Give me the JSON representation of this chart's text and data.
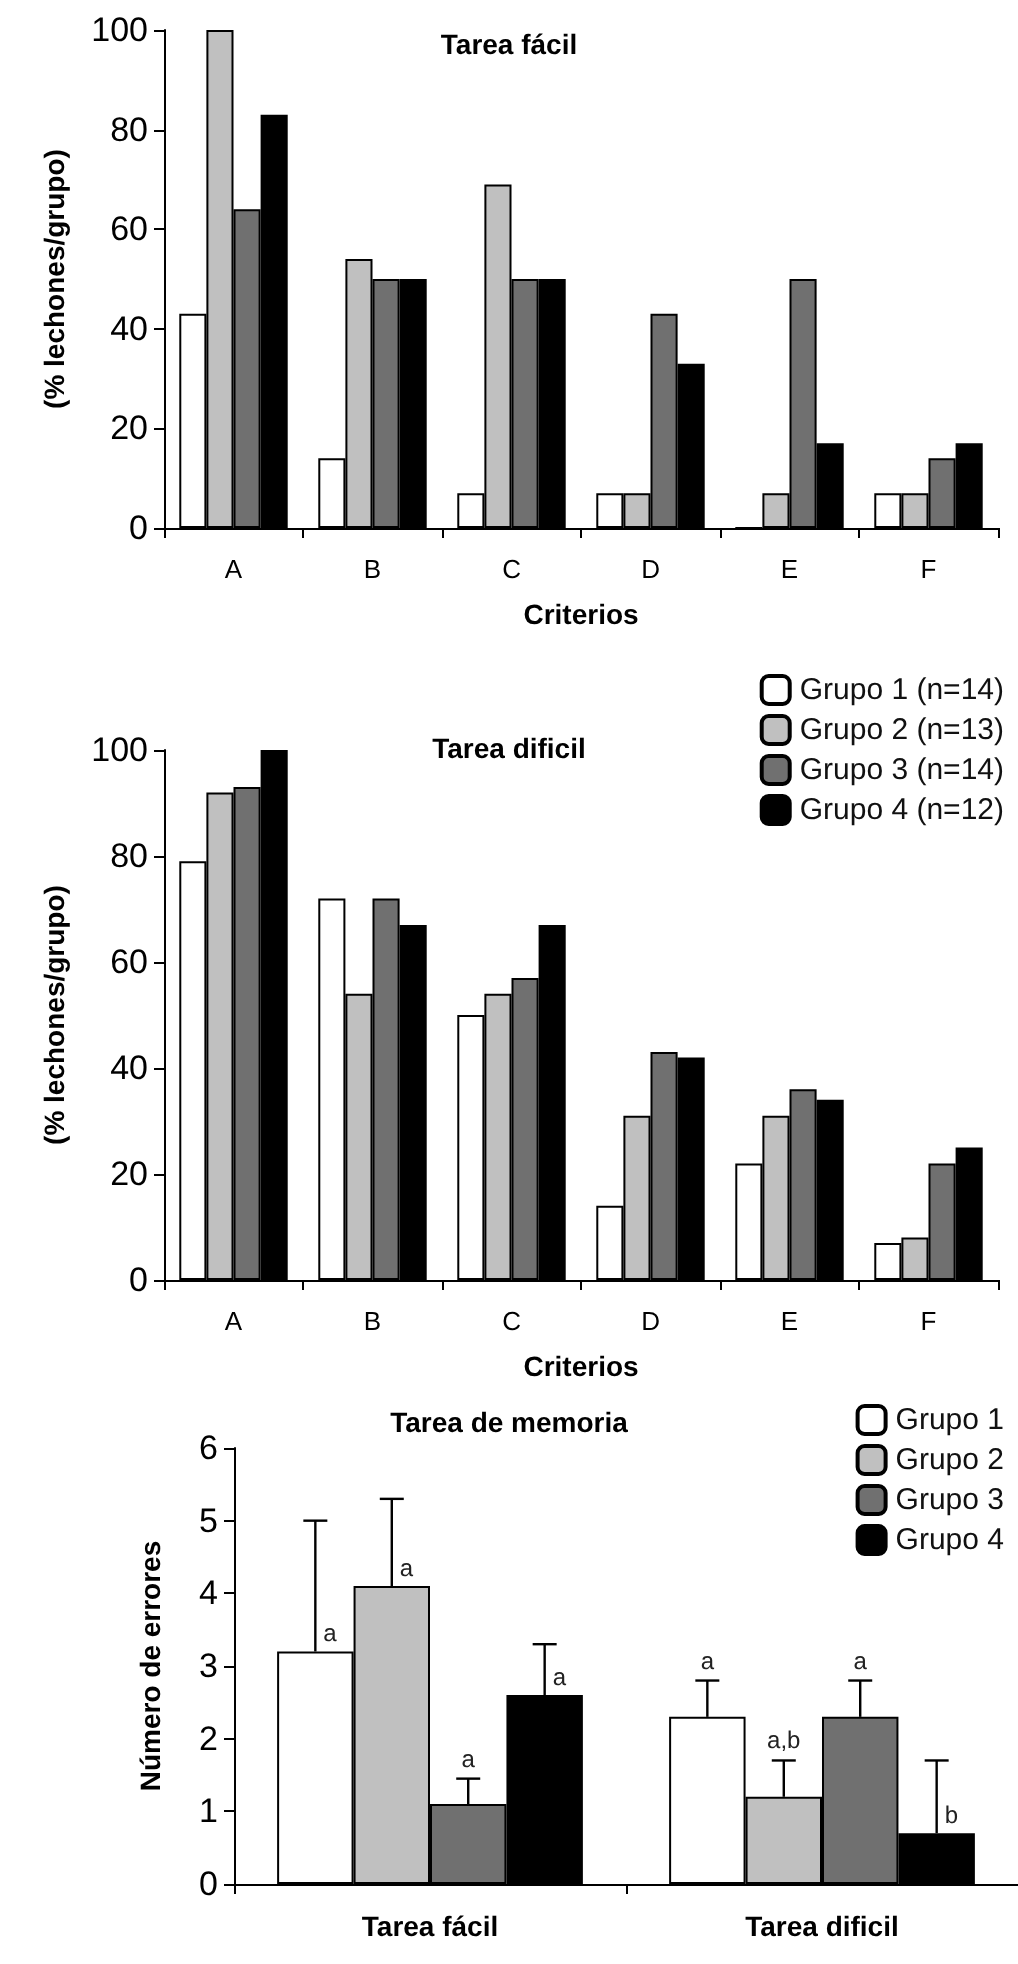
{
  "chart_data": [
    {
      "type": "bar",
      "title": "Tarea fácil",
      "xlabel": "Criterios",
      "ylabel": "(% lechones/grupo)",
      "categories": [
        "A",
        "B",
        "C",
        "D",
        "E",
        "F"
      ],
      "ylim": [
        0,
        100
      ],
      "yticks": [
        0,
        20,
        40,
        60,
        80,
        100
      ],
      "grid": false,
      "legend": false,
      "series": [
        {
          "color": "#ffffff",
          "values": [
            43,
            14,
            7,
            7,
            0,
            7
          ]
        },
        {
          "color": "#c0c0c0",
          "values": [
            100,
            54,
            69,
            7,
            7,
            7
          ]
        },
        {
          "color": "#707070",
          "values": [
            64,
            50,
            50,
            43,
            50,
            14
          ]
        },
        {
          "color": "#000000",
          "values": [
            83,
            50,
            50,
            33,
            17,
            17
          ]
        }
      ]
    },
    {
      "type": "bar",
      "title": "Tarea dificil",
      "xlabel": "Criterios",
      "ylabel": "(% lechones/grupo)",
      "categories": [
        "A",
        "B",
        "C",
        "D",
        "E",
        "F"
      ],
      "ylim": [
        0,
        100
      ],
      "yticks": [
        0,
        20,
        40,
        60,
        80,
        100
      ],
      "grid": false,
      "legend": "top right",
      "series": [
        {
          "name": "Grupo 1 (n=14)",
          "color": "#ffffff",
          "values": [
            79,
            72,
            50,
            14,
            22,
            7
          ]
        },
        {
          "name": "Grupo 2 (n=13)",
          "color": "#c0c0c0",
          "values": [
            92,
            54,
            54,
            31,
            31,
            8
          ]
        },
        {
          "name": "Grupo 3 (n=14)",
          "color": "#707070",
          "values": [
            93,
            72,
            57,
            43,
            36,
            22
          ]
        },
        {
          "name": "Grupo 4 (n=12)",
          "color": "#000000",
          "values": [
            100,
            67,
            67,
            42,
            34,
            25
          ]
        }
      ]
    },
    {
      "type": "bar",
      "title": "Tarea de memoria",
      "ylabel": "Número de errores",
      "categories": [
        "Tarea fácil",
        "Tarea dificil"
      ],
      "ylim": [
        0,
        6
      ],
      "yticks": [
        0,
        1,
        2,
        3,
        4,
        5,
        6
      ],
      "grid": false,
      "legend": "top right",
      "series": [
        {
          "name": "Grupo 1",
          "color": "#ffffff",
          "values": [
            3.2,
            2.3
          ],
          "errors": [
            [
              3.2,
              5.0
            ],
            [
              2.3,
              2.8
            ]
          ],
          "value_labels": [
            "a",
            "a"
          ]
        },
        {
          "name": "Grupo 2",
          "color": "#c0c0c0",
          "values": [
            4.1,
            1.2
          ],
          "errors": [
            [
              4.1,
              5.3
            ],
            [
              1.2,
              1.7
            ]
          ],
          "value_labels": [
            "a",
            "a,b"
          ]
        },
        {
          "name": "Grupo 3",
          "color": "#707070",
          "values": [
            1.1,
            2.3
          ],
          "errors": [
            [
              1.1,
              1.45
            ],
            [
              2.3,
              2.8
            ]
          ],
          "value_labels": [
            "a",
            "a"
          ]
        },
        {
          "name": "Grupo 4",
          "color": "#000000",
          "values": [
            2.6,
            0.7
          ],
          "errors": [
            [
              2.6,
              3.3
            ],
            [
              0.7,
              1.7
            ]
          ],
          "value_labels": [
            "a",
            "b"
          ]
        }
      ]
    }
  ]
}
